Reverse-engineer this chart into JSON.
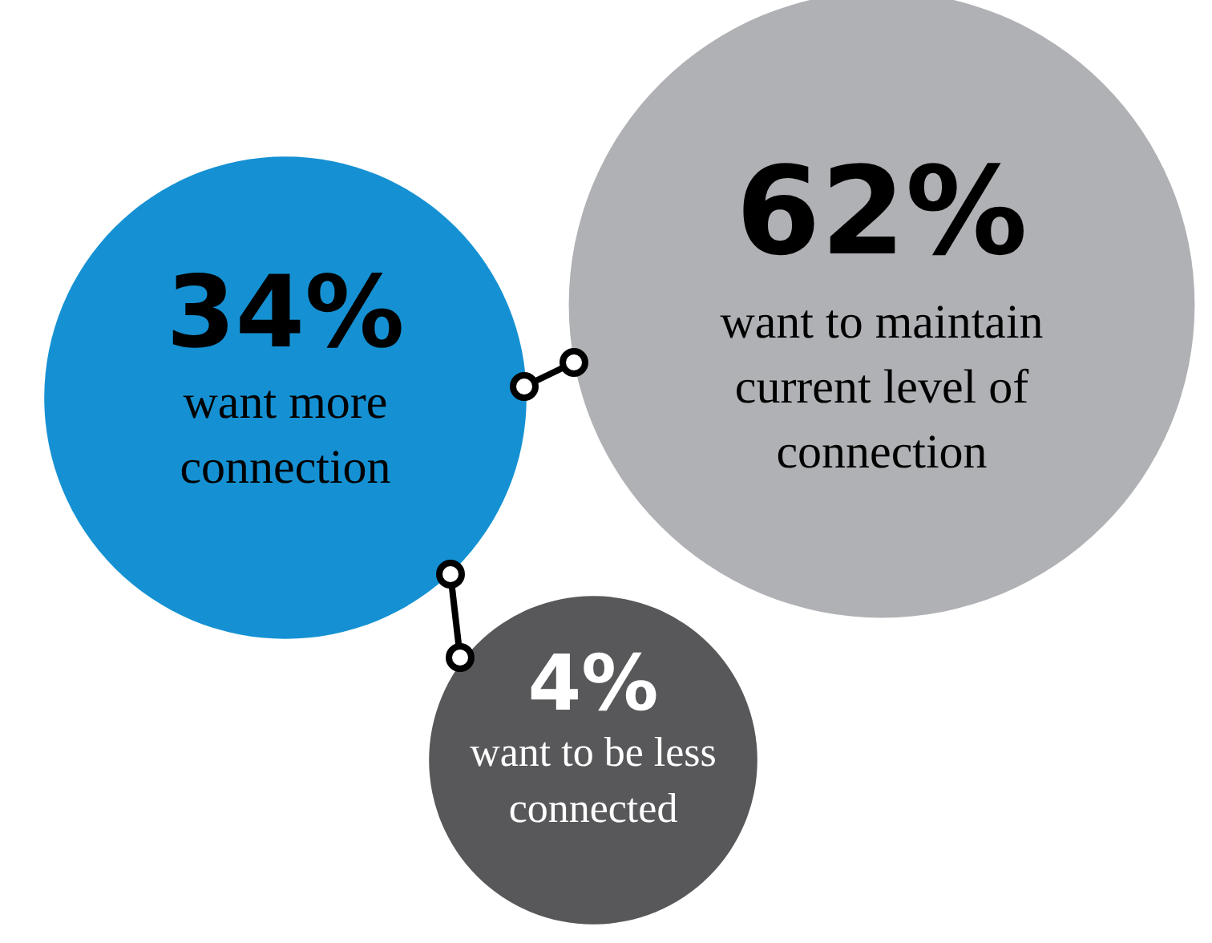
{
  "chart_data": {
    "type": "other",
    "categories": [
      "want more connection",
      "want to maintain current level of connection",
      "want to be less connected"
    ],
    "values": [
      34,
      62,
      4
    ],
    "value_labels": [
      "34%",
      "62%",
      "4%"
    ],
    "colors": [
      "#1591d3",
      "#b0b1b5",
      "#58585a"
    ]
  }
}
